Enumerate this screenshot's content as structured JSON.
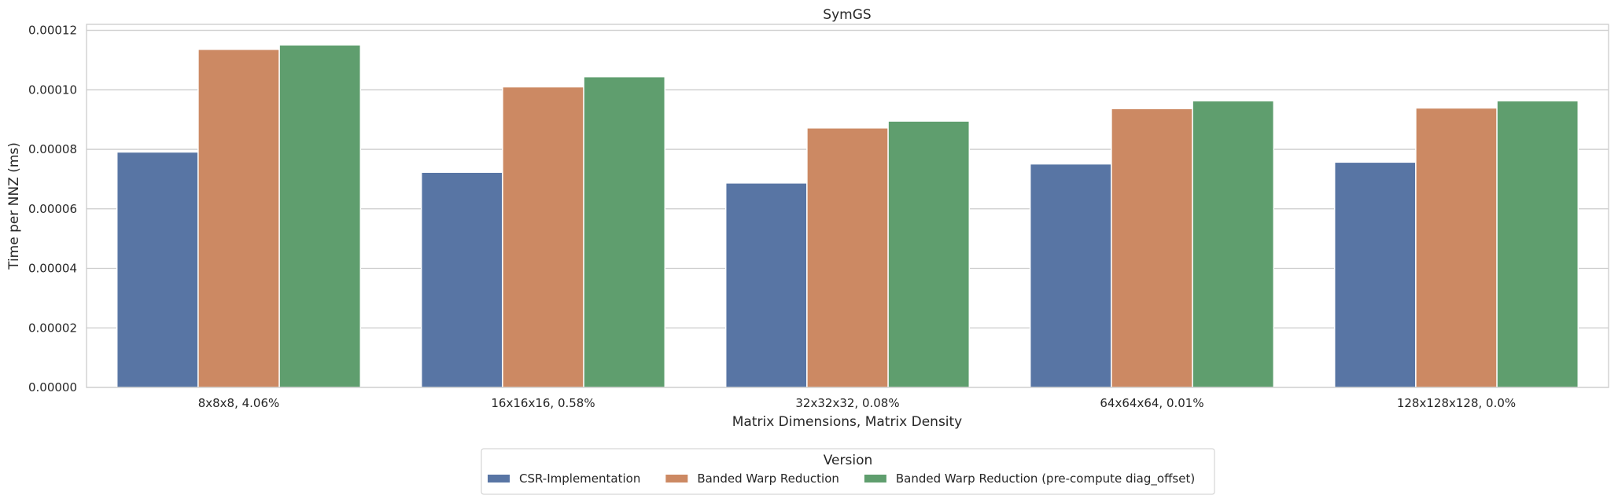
{
  "chart_data": {
    "type": "bar",
    "title": "SymGS",
    "xlabel": "Matrix Dimensions, Matrix Density",
    "ylabel": "Time per NNZ (ms)",
    "ylim": [
      0,
      0.000122
    ],
    "yticks": [
      "0.00000",
      "0.00002",
      "0.00004",
      "0.00006",
      "0.00008",
      "0.00010",
      "0.00012"
    ],
    "ytick_values": [
      0,
      2e-05,
      4e-05,
      6e-05,
      8e-05,
      0.0001,
      0.00012
    ],
    "grid": true,
    "legend": {
      "title": "Version",
      "placement": "bottom-center"
    },
    "categories": [
      "8x8x8, 4.06%",
      "16x16x16, 0.58%",
      "32x32x32, 0.08%",
      "64x64x64, 0.01%",
      "128x128x128, 0.0%"
    ],
    "series": [
      {
        "name": "CSR-Implementation",
        "color": "#5875a4",
        "values": [
          7.91e-05,
          7.23e-05,
          6.87e-05,
          7.51e-05,
          7.57e-05
        ]
      },
      {
        "name": "Banded Warp Reduction",
        "color": "#cc8963",
        "values": [
          0.0001136,
          0.000101,
          8.72e-05,
          9.37e-05,
          9.39e-05
        ]
      },
      {
        "name": "Banded Warp Reduction (pre-compute diag_offset)",
        "color": "#5f9e6e",
        "values": [
          0.0001151,
          0.0001044,
          8.95e-05,
          9.63e-05,
          9.63e-05
        ]
      }
    ]
  }
}
